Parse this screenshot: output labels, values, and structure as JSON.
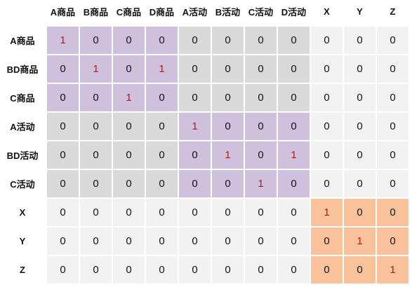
{
  "columns": [
    "A商品",
    "B商品",
    "C商品",
    "D商品",
    "A活动",
    "B活动",
    "C活动",
    "D活动",
    "X",
    "Y",
    "Z"
  ],
  "rows": [
    "A商品",
    "BD商品",
    "C商品",
    "A活动",
    "BD活动",
    "C活动",
    "X",
    "Y",
    "Z"
  ],
  "matrix": [
    [
      1,
      0,
      0,
      0,
      0,
      0,
      0,
      0,
      0,
      0,
      0
    ],
    [
      0,
      1,
      0,
      1,
      0,
      0,
      0,
      0,
      0,
      0,
      0
    ],
    [
      0,
      0,
      1,
      0,
      0,
      0,
      0,
      0,
      0,
      0,
      0
    ],
    [
      0,
      0,
      0,
      0,
      1,
      0,
      0,
      0,
      0,
      0,
      0
    ],
    [
      0,
      0,
      0,
      0,
      0,
      1,
      0,
      1,
      0,
      0,
      0
    ],
    [
      0,
      0,
      0,
      0,
      0,
      0,
      1,
      0,
      0,
      0,
      0
    ],
    [
      0,
      0,
      0,
      0,
      0,
      0,
      0,
      0,
      1,
      0,
      0
    ],
    [
      0,
      0,
      0,
      0,
      0,
      0,
      0,
      0,
      0,
      1,
      0
    ],
    [
      0,
      0,
      0,
      0,
      0,
      0,
      0,
      0,
      0,
      0,
      1
    ]
  ],
  "colors": {
    "purple_block": "#cfc1de",
    "gray_block": "#d9d9d9",
    "light_block": "#f2f2f2",
    "orange_block": "#f9c29a",
    "one_value": "#b01a1a"
  }
}
